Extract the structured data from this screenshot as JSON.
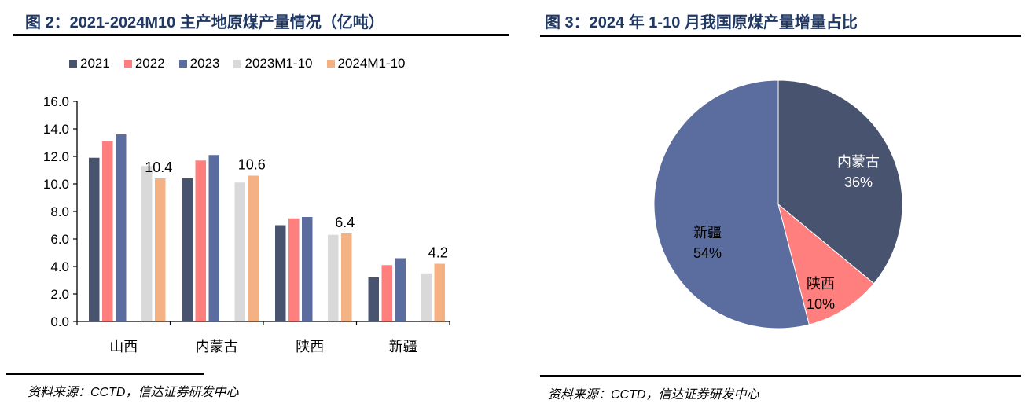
{
  "left_panel": {
    "title": "图 2：2021-2024M10 主产地原煤产量情况（亿吨）",
    "source": "资料来源：CCTD，信达证券研发中心"
  },
  "right_panel": {
    "title": "图 3：2024 年 1-10 月我国原煤产量增量占比",
    "source": "资料来源：CCTD，信达证券研发中心"
  },
  "chart_data": [
    {
      "type": "bar",
      "title": "2021-2024M10 主产地原煤产量情况（亿吨）",
      "xlabel": "",
      "ylabel": "",
      "ylim": [
        0,
        16
      ],
      "yticks": [
        "0.0",
        "2.0",
        "4.0",
        "6.0",
        "8.0",
        "10.0",
        "12.0",
        "14.0",
        "16.0"
      ],
      "grid": false,
      "legend_position": "top",
      "categories": [
        "山西",
        "内蒙古",
        "陕西",
        "新疆"
      ],
      "series": [
        {
          "name": "2021",
          "color": "#47536f",
          "values": [
            11.9,
            10.4,
            7.0,
            3.2
          ]
        },
        {
          "name": "2022",
          "color": "#ff7f7f",
          "values": [
            13.1,
            11.7,
            7.5,
            4.1
          ]
        },
        {
          "name": "2023",
          "color": "#5b6d9e",
          "values": [
            13.6,
            12.1,
            7.6,
            4.6
          ]
        },
        {
          "name": "2023M1-10",
          "color": "#d9d9d9",
          "values": [
            11.3,
            10.1,
            6.3,
            3.5
          ]
        },
        {
          "name": "2024M1-10",
          "color": "#f4b183",
          "values": [
            10.4,
            10.6,
            6.4,
            4.2
          ]
        }
      ],
      "data_labels": [
        {
          "series": "2024M1-10",
          "category": "山西",
          "text": "10.4"
        },
        {
          "series": "2024M1-10",
          "category": "内蒙古",
          "text": "10.6"
        },
        {
          "series": "2024M1-10",
          "category": "陕西",
          "text": "6.4"
        },
        {
          "series": "2024M1-10",
          "category": "新疆",
          "text": "4.2"
        }
      ]
    },
    {
      "type": "pie",
      "title": "2024 年 1-10 月我国原煤产量增量占比",
      "slices": [
        {
          "label": "内蒙古",
          "value": 36,
          "text": "36%",
          "color": "#47536f",
          "label_color": "#ffffff"
        },
        {
          "label": "陕西",
          "value": 10,
          "text": "10%",
          "color": "#ff7f7f",
          "label_color": "#000000"
        },
        {
          "label": "新疆",
          "value": 54,
          "text": "54%",
          "color": "#5b6d9e",
          "label_color": "#000000"
        }
      ]
    }
  ]
}
